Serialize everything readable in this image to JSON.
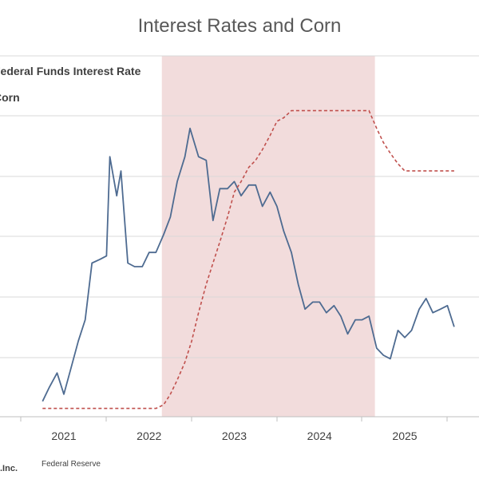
{
  "chart_data": {
    "type": "line",
    "title": "Interest Rates and Corn",
    "x_ticks": [
      "2021",
      "2022",
      "2023",
      "2024",
      "2025"
    ],
    "x_range": [
      2020.75,
      2026.0
    ],
    "shaded_region": {
      "start": 2022.15,
      "end": 2024.65,
      "color": "#f2dcdc"
    },
    "grid": true,
    "legend_position": "top-left",
    "series": [
      {
        "name": "Corn",
        "style": "solid",
        "color": "#4e6b91",
        "points": [
          [
            2020.75,
            0.03
          ],
          [
            2020.83,
            0.07
          ],
          [
            2020.92,
            0.11
          ],
          [
            2021.0,
            0.05
          ],
          [
            2021.08,
            0.12
          ],
          [
            2021.17,
            0.2
          ],
          [
            2021.25,
            0.26
          ],
          [
            2021.33,
            0.42
          ],
          [
            2021.42,
            0.43
          ],
          [
            2021.5,
            0.44
          ],
          [
            2021.54,
            0.72
          ],
          [
            2021.62,
            0.61
          ],
          [
            2021.67,
            0.68
          ],
          [
            2021.75,
            0.42
          ],
          [
            2021.83,
            0.41
          ],
          [
            2021.92,
            0.41
          ],
          [
            2022.0,
            0.45
          ],
          [
            2022.08,
            0.45
          ],
          [
            2022.17,
            0.5
          ],
          [
            2022.25,
            0.55
          ],
          [
            2022.33,
            0.65
          ],
          [
            2022.42,
            0.72
          ],
          [
            2022.48,
            0.8
          ],
          [
            2022.58,
            0.72
          ],
          [
            2022.67,
            0.71
          ],
          [
            2022.75,
            0.54
          ],
          [
            2022.83,
            0.63
          ],
          [
            2022.92,
            0.63
          ],
          [
            2023.0,
            0.65
          ],
          [
            2023.08,
            0.61
          ],
          [
            2023.17,
            0.64
          ],
          [
            2023.25,
            0.64
          ],
          [
            2023.33,
            0.58
          ],
          [
            2023.42,
            0.62
          ],
          [
            2023.5,
            0.58
          ],
          [
            2023.58,
            0.51
          ],
          [
            2023.67,
            0.45
          ],
          [
            2023.75,
            0.36
          ],
          [
            2023.83,
            0.29
          ],
          [
            2023.92,
            0.31
          ],
          [
            2024.0,
            0.31
          ],
          [
            2024.08,
            0.28
          ],
          [
            2024.17,
            0.3
          ],
          [
            2024.25,
            0.27
          ],
          [
            2024.33,
            0.22
          ],
          [
            2024.42,
            0.26
          ],
          [
            2024.5,
            0.26
          ],
          [
            2024.58,
            0.27
          ],
          [
            2024.67,
            0.18
          ],
          [
            2024.75,
            0.16
          ],
          [
            2024.83,
            0.15
          ],
          [
            2024.92,
            0.23
          ],
          [
            2025.0,
            0.21
          ],
          [
            2025.08,
            0.23
          ],
          [
            2025.17,
            0.29
          ],
          [
            2025.25,
            0.32
          ],
          [
            2025.33,
            0.28
          ],
          [
            2025.42,
            0.29
          ],
          [
            2025.5,
            0.3
          ],
          [
            2025.58,
            0.24
          ]
        ]
      },
      {
        "name": "Federal Funds Interest Rate",
        "style": "dashed",
        "color": "#c0504d",
        "points": [
          [
            2020.75,
            0.01
          ],
          [
            2021.0,
            0.01
          ],
          [
            2021.25,
            0.01
          ],
          [
            2021.5,
            0.01
          ],
          [
            2021.75,
            0.01
          ],
          [
            2022.0,
            0.01
          ],
          [
            2022.08,
            0.01
          ],
          [
            2022.17,
            0.02
          ],
          [
            2022.25,
            0.05
          ],
          [
            2022.33,
            0.09
          ],
          [
            2022.42,
            0.14
          ],
          [
            2022.5,
            0.2
          ],
          [
            2022.58,
            0.28
          ],
          [
            2022.67,
            0.36
          ],
          [
            2022.75,
            0.42
          ],
          [
            2022.83,
            0.48
          ],
          [
            2022.92,
            0.55
          ],
          [
            2023.0,
            0.62
          ],
          [
            2023.08,
            0.65
          ],
          [
            2023.17,
            0.69
          ],
          [
            2023.25,
            0.71
          ],
          [
            2023.33,
            0.74
          ],
          [
            2023.42,
            0.78
          ],
          [
            2023.5,
            0.82
          ],
          [
            2023.58,
            0.83
          ],
          [
            2023.67,
            0.85
          ],
          [
            2023.75,
            0.85
          ],
          [
            2023.83,
            0.85
          ],
          [
            2023.92,
            0.85
          ],
          [
            2024.0,
            0.85
          ],
          [
            2024.25,
            0.85
          ],
          [
            2024.5,
            0.85
          ],
          [
            2024.58,
            0.85
          ],
          [
            2024.67,
            0.8
          ],
          [
            2024.75,
            0.76
          ],
          [
            2024.83,
            0.73
          ],
          [
            2024.92,
            0.7
          ],
          [
            2025.0,
            0.68
          ],
          [
            2025.08,
            0.68
          ],
          [
            2025.25,
            0.68
          ],
          [
            2025.58,
            0.68
          ]
        ]
      }
    ]
  },
  "footer": {
    "left": ".Inc.",
    "source": "Federal Reserve"
  }
}
